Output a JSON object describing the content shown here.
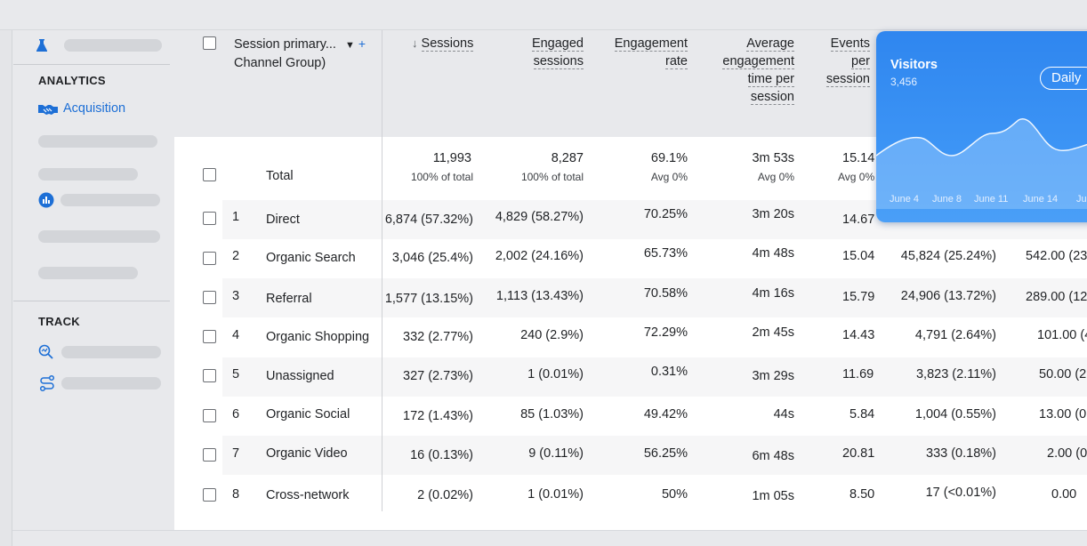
{
  "sidebar": {
    "analytics_heading": "ANALYTICS",
    "acquisition_label": "Acquisition",
    "track_heading": "TRACK"
  },
  "table": {
    "header": {
      "dimension_line1": "Session primary...",
      "dimension_line2": "Channel Group)",
      "sessions": "Sessions",
      "sort_arrow": "↓",
      "engaged_1": "Engaged",
      "engaged_2": "sessions",
      "rate_1": "Engagement",
      "rate_2": "rate",
      "avg_1": "Average",
      "avg_2": "engagement",
      "avg_3": "time per",
      "avg_4": "session",
      "eps_1": "Events",
      "eps_2": "per",
      "eps_3": "session"
    },
    "total": {
      "label": "Total",
      "sessions": "11,993",
      "sessions_sub": "100% of total",
      "engaged": "8,287",
      "engaged_sub": "100% of total",
      "rate": "69.1%",
      "rate_sub": "Avg 0%",
      "avg_time": "3m 53s",
      "avg_time_sub": "Avg 0%",
      "eps": "15.14",
      "eps_sub": "Avg 0%"
    },
    "rows": [
      {
        "num": "1",
        "channel": "Direct",
        "sessions": "6,874 (57.32%)",
        "engaged": "4,829 (58.27%)",
        "rate": "70.25%",
        "avg_time": "3m 20s",
        "eps": "14.67",
        "events": "",
        "extra": ""
      },
      {
        "num": "2",
        "channel": "Organic Search",
        "sessions": "3,046 (25.4%)",
        "engaged": "2,002 (24.16%)",
        "rate": "65.73%",
        "avg_time": "4m 48s",
        "eps": "15.04",
        "events": "45,824 (25.24%)",
        "extra": "542.00 (23"
      },
      {
        "num": "3",
        "channel": "Referral",
        "sessions": "1,577 (13.15%)",
        "engaged": "1,113 (13.43%)",
        "rate": "70.58%",
        "avg_time": "4m 16s",
        "eps": "15.79",
        "events": "24,906 (13.72%)",
        "extra": "289.00 (12"
      },
      {
        "num": "4",
        "channel": "Organic Shopping",
        "sessions": "332 (2.77%)",
        "engaged": "240 (2.9%)",
        "rate": "72.29%",
        "avg_time": "2m 45s",
        "eps": "14.43",
        "events": "4,791 (2.64%)",
        "extra": "101.00 (4"
      },
      {
        "num": "5",
        "channel": "Unassigned",
        "sessions": "327 (2.73%)",
        "engaged": "1 (0.01%)",
        "rate": "0.31%",
        "avg_time": "3m 29s",
        "eps": "11.69",
        "events": "3,823 (2.11%)",
        "extra": "50.00 (2"
      },
      {
        "num": "6",
        "channel": "Organic Social",
        "sessions": "172 (1.43%)",
        "engaged": "85 (1.03%)",
        "rate": "49.42%",
        "avg_time": "44s",
        "eps": "5.84",
        "events": "1,004 (0.55%)",
        "extra": "13.00 (0"
      },
      {
        "num": "7",
        "channel": "Organic Video",
        "sessions": "16 (0.13%)",
        "engaged": "9 (0.11%)",
        "rate": "56.25%",
        "avg_time": "6m 48s",
        "eps": "20.81",
        "events": "333 (0.18%)",
        "extra": "2.00 (0"
      },
      {
        "num": "8",
        "channel": "Cross-network",
        "sessions": "2 (0.02%)",
        "engaged": "1 (0.01%)",
        "rate": "50%",
        "avg_time": "1m 05s",
        "eps": "8.50",
        "events": "17 (<0.01%)",
        "extra": "0.00"
      }
    ]
  },
  "visitors_card": {
    "title": "Visitors",
    "value": "3,456",
    "period_button": "Daily",
    "x_labels": [
      "June 4",
      "June 8",
      "June 11",
      "June 14",
      "Ju"
    ],
    "colors": {
      "card": "#2f86ef",
      "area": "#8cc3fb",
      "line": "#ffffff"
    }
  },
  "colors": {
    "accent": "#1d6fd6",
    "background": "#e8e9ec",
    "table_bg": "#ffffff"
  }
}
